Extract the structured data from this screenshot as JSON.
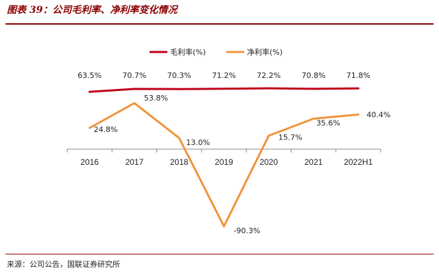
{
  "title": "图表 39：公司毛利率、净利率变化情况",
  "source": "来源：公司公告，国联证券研究所",
  "chart_data": {
    "type": "line",
    "categories": [
      "2016",
      "2017",
      "2018",
      "2019",
      "2020",
      "2021",
      "2022H1"
    ],
    "series": [
      {
        "name": "毛利率(%)",
        "color": "#c0001a",
        "values": [
          63.5,
          70.7,
          70.3,
          71.2,
          72.2,
          70.8,
          71.8
        ],
        "labels": [
          "63.5%",
          "70.7%",
          "70.3%",
          "71.2%",
          "72.2%",
          "70.8%",
          "71.8%"
        ]
      },
      {
        "name": "净利率(%)",
        "color": "#f0943a",
        "values": [
          24.8,
          53.8,
          13.0,
          -90.3,
          15.7,
          35.6,
          40.4
        ],
        "labels": [
          "24.8%",
          "53.8%",
          "13.0%",
          "-90.3%",
          "15.7%",
          "35.6%",
          "40.4%"
        ]
      }
    ],
    "legend_position": "top",
    "grid": false
  }
}
